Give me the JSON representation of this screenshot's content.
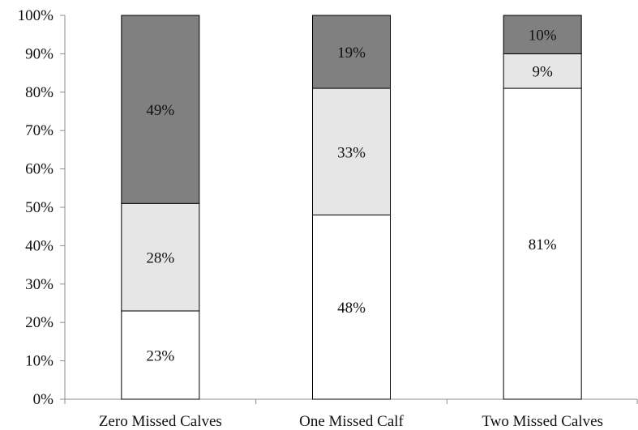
{
  "chart_data": {
    "type": "bar",
    "stacked": true,
    "percent_stacked": true,
    "title": "",
    "xlabel": "",
    "ylabel": "",
    "categories": [
      "Zero Missed Calves",
      "One Missed Calf",
      "Two Missed Calves"
    ],
    "series": [
      {
        "values": [
          23,
          48,
          81
        ],
        "labels": [
          "23%",
          "48%",
          "81%"
        ],
        "color": "#ffffff"
      },
      {
        "values": [
          28,
          33,
          9
        ],
        "labels": [
          "28%",
          "33%",
          "9%"
        ],
        "color": "#e6e6e6"
      },
      {
        "values": [
          49,
          19,
          10
        ],
        "labels": [
          "49%",
          "19%",
          "10%"
        ],
        "color": "#808080"
      }
    ],
    "ylim": [
      0,
      100
    ],
    "yticks": [
      0,
      10,
      20,
      30,
      40,
      50,
      60,
      70,
      80,
      90,
      100
    ],
    "ytick_labels": [
      "0%",
      "10%",
      "20%",
      "30%",
      "40%",
      "50%",
      "60%",
      "70%",
      "80%",
      "90%",
      "100%"
    ],
    "grid": false,
    "legend": "none",
    "bar_edge_color": "#000000",
    "axis_color": "#8c8c8c"
  }
}
